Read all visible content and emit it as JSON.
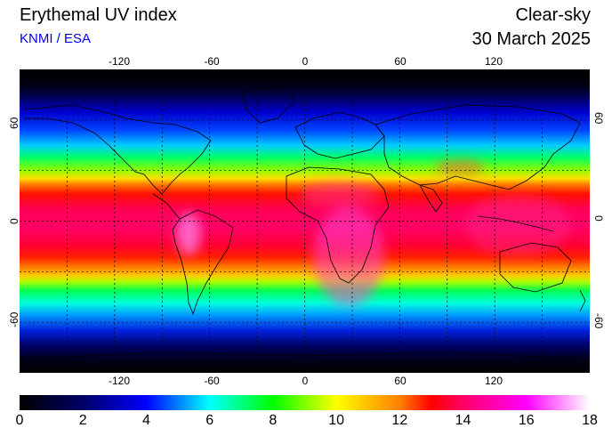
{
  "header": {
    "title": "Erythemal UV index",
    "source": "KNMI / ESA",
    "condition": "Clear-sky",
    "date": "30 March 2025"
  },
  "map": {
    "projection": "equirectangular",
    "lon_range": [
      -180,
      180
    ],
    "lat_range": [
      -90,
      90
    ],
    "lon_ticks": [
      "-120",
      "-60",
      "0",
      "60",
      "120"
    ],
    "lat_ticks": [
      "60",
      "0",
      "-60"
    ],
    "grid": true,
    "grid_spacing_deg": 30,
    "background": "#000000",
    "coastline_color": "#000000"
  },
  "colorbar": {
    "min": 0,
    "max": 18,
    "tick_labels": [
      "0",
      "2",
      "4",
      "6",
      "8",
      "10",
      "12",
      "14",
      "16",
      "18"
    ],
    "stops": [
      {
        "value": 0,
        "color": "#000000"
      },
      {
        "value": 2,
        "color": "#000066"
      },
      {
        "value": 4,
        "color": "#0000ff"
      },
      {
        "value": 6,
        "color": "#00ffff"
      },
      {
        "value": 8,
        "color": "#00ff00"
      },
      {
        "value": 10,
        "color": "#ffff00"
      },
      {
        "value": 12,
        "color": "#ff8000"
      },
      {
        "value": 13,
        "color": "#ff0000"
      },
      {
        "value": 14,
        "color": "#ff0066"
      },
      {
        "value": 16,
        "color": "#ff00ff"
      },
      {
        "value": 18,
        "color": "#ffffff"
      }
    ]
  }
}
